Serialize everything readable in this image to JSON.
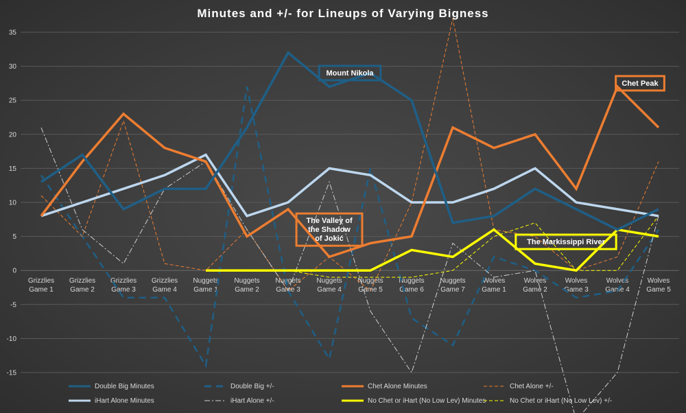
{
  "chart_data": {
    "type": "line",
    "title": "Minutes and +/- for Lineups of Varying Bigness",
    "categories": [
      [
        "Grizzlies",
        "Game 1"
      ],
      [
        "Grizzlies",
        "Game 2"
      ],
      [
        "Grizzlies",
        "Game 3"
      ],
      [
        "Grizzlies",
        "Game 4"
      ],
      [
        "Nuggets",
        "Game 1"
      ],
      [
        "Nuggets",
        "Game 2"
      ],
      [
        "Nuggets",
        "Game 3"
      ],
      [
        "Nuggets",
        "Game 4"
      ],
      [
        "Nuggets",
        "Game 5"
      ],
      [
        "Nuggets",
        "Game 6"
      ],
      [
        "Nuggets",
        "Game 7"
      ],
      [
        "Wolves",
        "Game 1"
      ],
      [
        "Wolves",
        "Game 2"
      ],
      [
        "Wolves",
        "Game 3"
      ],
      [
        "Wolves",
        "Game 4"
      ],
      [
        "Wolves",
        "Game 5"
      ]
    ],
    "ylim": [
      -15,
      35
    ],
    "yticks": [
      -15,
      -10,
      -5,
      0,
      5,
      10,
      15,
      20,
      25,
      30,
      35
    ],
    "grid": true,
    "legend_position": "bottom",
    "series": [
      {
        "name": "Double Big Minutes",
        "color": "#1f5f86",
        "style": "solid",
        "width": 3.5,
        "values": [
          13,
          17,
          9,
          12,
          12,
          21,
          32,
          27,
          29,
          25,
          7,
          8,
          12,
          9,
          6,
          9
        ]
      },
      {
        "name": "Double Big +/-",
        "color": "#1f5f86",
        "style": "dashed-long",
        "width": 2.5,
        "values": [
          14,
          5,
          -4,
          -4,
          -14,
          27,
          -3,
          -13,
          15,
          -7,
          -11,
          2,
          0,
          -4,
          -3,
          6
        ]
      },
      {
        "name": "Chet Alone Minutes",
        "color": "#ed7d31",
        "style": "solid",
        "width": 3.5,
        "values": [
          8,
          16,
          23,
          18,
          16,
          5,
          9,
          2,
          4,
          5,
          21,
          18,
          20,
          12,
          27,
          21
        ]
      },
      {
        "name": "Chet Alone +/-",
        "color": "#ed7d31",
        "style": "dashed",
        "width": 1,
        "values": [
          11,
          5,
          22,
          1,
          0,
          6,
          -3,
          2,
          -3,
          10,
          37,
          6,
          5,
          0,
          2,
          16
        ]
      },
      {
        "name": "iHart Alone Minutes",
        "color": "#bdd7ee",
        "style": "solid",
        "width": 3.5,
        "values": [
          8,
          10,
          12,
          14,
          17,
          8,
          10,
          15,
          14,
          10,
          10,
          12,
          15,
          10,
          9,
          8
        ]
      },
      {
        "name": "iHart Alone +/-",
        "color": "#d0d0d0",
        "style": "dashdot",
        "width": 1,
        "values": [
          21,
          6,
          1,
          12,
          16,
          6,
          -3,
          13,
          -6,
          -15,
          4,
          -1,
          0,
          -22,
          -15,
          8
        ]
      },
      {
        "name": "No Chet or iHart (No Low Lev) Minutes",
        "color": "#ffff00",
        "style": "solid",
        "width": 3.5,
        "values": [
          null,
          null,
          null,
          null,
          0,
          0,
          0,
          0,
          0,
          3,
          2,
          6,
          1,
          0,
          6,
          5
        ]
      },
      {
        "name": "No Chet or iHart (No Low Lev) +/-",
        "color": "#ffff00",
        "style": "dashed",
        "width": 1,
        "values": [
          null,
          null,
          null,
          null,
          0,
          0,
          0,
          -1,
          -1,
          -1,
          0,
          5,
          7,
          0,
          0,
          8
        ]
      }
    ],
    "annotations": [
      {
        "text": [
          "Mount Nikola"
        ],
        "color": "#1f5f86",
        "x": 7.5,
        "y": 29
      },
      {
        "text": [
          "Chet Peak"
        ],
        "color": "#ed7d31",
        "x": 14.55,
        "y": 27.5
      },
      {
        "text": [
          "The Valley of",
          "the Shadow",
          "of Jokić"
        ],
        "color": "#ed7d31",
        "x": 7.0,
        "y": 6
      },
      {
        "text": [
          "The Markissippi River"
        ],
        "color": "#ffff00",
        "x": 12.75,
        "y": 4.2
      }
    ]
  }
}
